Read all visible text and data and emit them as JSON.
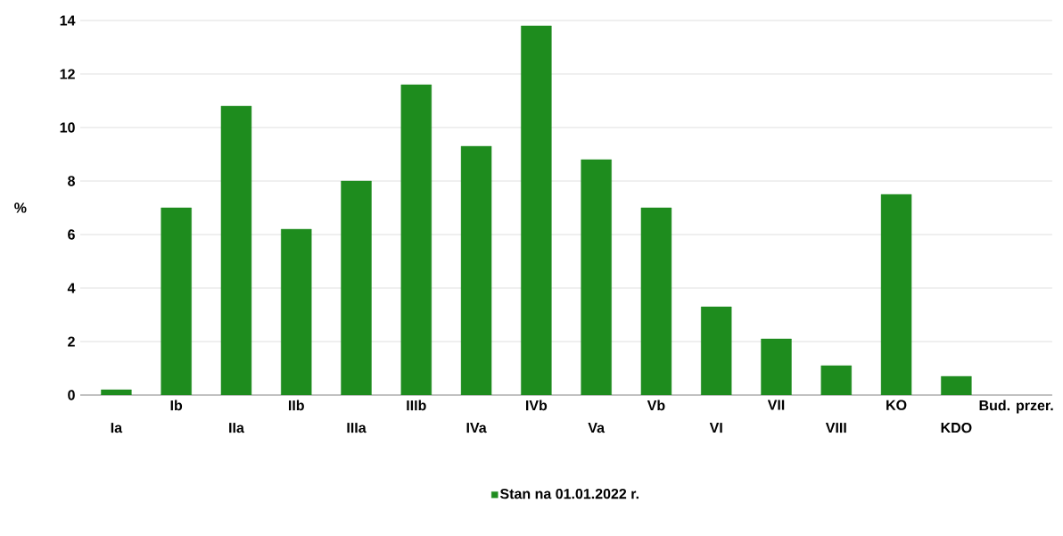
{
  "chart_data": {
    "type": "bar",
    "ylabel": "%",
    "categories": [
      "Ia",
      "Ib",
      "IIa",
      "IIb",
      "IIIa",
      "IIIb",
      "IVa",
      "IVb",
      "Va",
      "Vb",
      "VI",
      "VII",
      "VIII",
      "KO",
      "KDO",
      "Bud. przer."
    ],
    "series": [
      {
        "name": "Stan na 01.01.2022 r.",
        "color": "#1e8c1e",
        "values": [
          0.2,
          7.0,
          10.8,
          6.2,
          8.0,
          11.6,
          9.3,
          13.8,
          8.8,
          7.0,
          3.3,
          2.1,
          1.1,
          7.5,
          0.7,
          null
        ]
      }
    ],
    "ylim": [
      0,
      14
    ],
    "yticks": [
      0,
      2,
      4,
      6,
      8,
      10,
      12,
      14
    ],
    "grid": "y",
    "legend": "bottom"
  }
}
